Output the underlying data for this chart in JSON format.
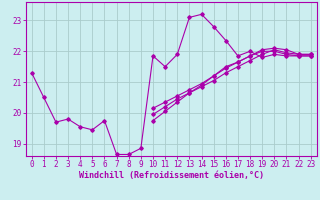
{
  "title": "",
  "xlabel": "Windchill (Refroidissement éolien,°C)",
  "bg_color": "#cceef0",
  "line_color": "#aa00aa",
  "grid_color": "#aacccc",
  "ylim": [
    18.6,
    23.6
  ],
  "xlim": [
    -0.5,
    23.5
  ],
  "yticks": [
    19,
    20,
    21,
    22,
    23
  ],
  "xticks": [
    0,
    1,
    2,
    3,
    4,
    5,
    6,
    7,
    8,
    9,
    10,
    11,
    12,
    13,
    14,
    15,
    16,
    17,
    18,
    19,
    20,
    21,
    22,
    23
  ],
  "series": [
    [
      21.3,
      20.5,
      19.7,
      19.8,
      19.55,
      19.45,
      19.75,
      18.65,
      18.65,
      18.85,
      21.85,
      21.5,
      21.9,
      23.1,
      23.2,
      22.8,
      22.35,
      21.85,
      22.0,
      21.8,
      21.9,
      21.85,
      21.85,
      21.85
    ],
    [
      null,
      null,
      null,
      null,
      null,
      null,
      null,
      null,
      null,
      null,
      20.15,
      20.35,
      20.55,
      20.75,
      20.95,
      21.2,
      21.45,
      21.65,
      21.85,
      22.05,
      22.1,
      22.05,
      21.9,
      21.9
    ],
    [
      null,
      null,
      null,
      null,
      null,
      null,
      null,
      null,
      null,
      null,
      19.75,
      20.05,
      20.35,
      20.65,
      20.9,
      21.2,
      21.5,
      21.65,
      21.85,
      22.0,
      22.0,
      21.9,
      21.85,
      21.85
    ],
    [
      null,
      null,
      null,
      null,
      null,
      null,
      null,
      null,
      null,
      null,
      19.95,
      20.2,
      20.45,
      20.65,
      20.85,
      21.05,
      21.3,
      21.5,
      21.7,
      21.9,
      22.05,
      21.95,
      21.9,
      21.9
    ]
  ],
  "tick_fontsize": 5.5,
  "label_fontsize": 6.0
}
